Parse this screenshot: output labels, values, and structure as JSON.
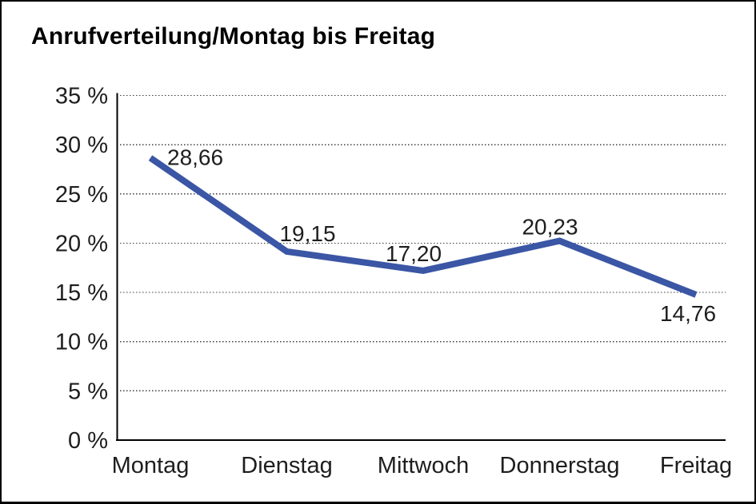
{
  "title": "Anrufverteilung/Montag bis Freitag",
  "chart_data": {
    "type": "line",
    "title": "Anrufverteilung/Montag bis Freitag",
    "categories": [
      "Montag",
      "Dienstag",
      "Mittwoch",
      "Donnerstag",
      "Freitag"
    ],
    "values": [
      28.66,
      19.15,
      17.2,
      20.23,
      14.76
    ],
    "value_labels": [
      "28,66",
      "19,15",
      "17,20",
      "20,23",
      "14,76"
    ],
    "xlabel": "",
    "ylabel": "",
    "ylim": [
      0,
      35
    ],
    "ytick_step": 5,
    "ytick_labels": [
      "0 %",
      "5 %",
      "10 %",
      "15 %",
      "20 %",
      "25 %",
      "30 %",
      "35 %"
    ],
    "grid": "horizontal-dotted",
    "legend": "none",
    "line_color": "#3A56A5",
    "grid_color": "#3c3c3c",
    "axis_color": "#000000",
    "text_color": "#1e1e1e"
  }
}
